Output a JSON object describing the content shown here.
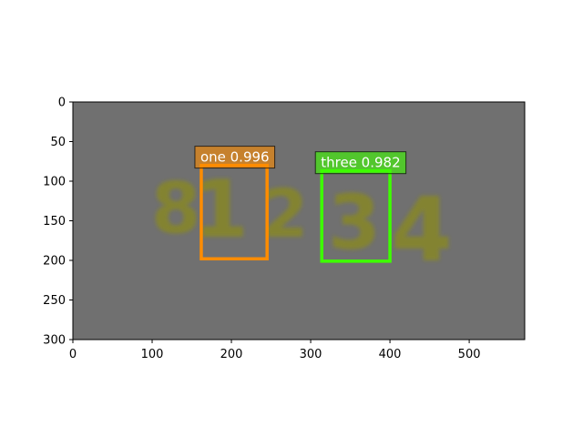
{
  "chart_data": {
    "type": "image",
    "image_size": [
      570,
      300
    ],
    "xlim": [
      0,
      570
    ],
    "ylim": [
      300,
      0
    ],
    "x_ticks": [
      0,
      100,
      200,
      300,
      400,
      500
    ],
    "y_ticks": [
      0,
      50,
      100,
      150,
      200,
      250,
      300
    ],
    "background_color": "#707070",
    "text_color": "#8a8a1f",
    "digits_in_image": [
      {
        "text": "8",
        "x": [
          95,
          165
        ],
        "y": [
          85,
          165
        ]
      },
      {
        "text": "1",
        "x": [
          168,
          205
        ],
        "y": [
          80,
          170
        ]
      },
      {
        "text": "2",
        "x": [
          250,
          285
        ],
        "y": [
          95,
          170
        ]
      },
      {
        "text": "3",
        "x": [
          325,
          385
        ],
        "y": [
          100,
          185
        ]
      },
      {
        "text": "4",
        "x": [
          410,
          470
        ],
        "y": [
          100,
          200
        ]
      }
    ],
    "detections": [
      {
        "label": "one",
        "score": "0.996",
        "x1": 162,
        "y1": 80,
        "x2": 245,
        "y2": 198,
        "color": "#ff8c00"
      },
      {
        "label": "three",
        "score": "0.982",
        "x1": 314,
        "y1": 87,
        "x2": 400,
        "y2": 201,
        "color": "#3dff00"
      }
    ]
  }
}
